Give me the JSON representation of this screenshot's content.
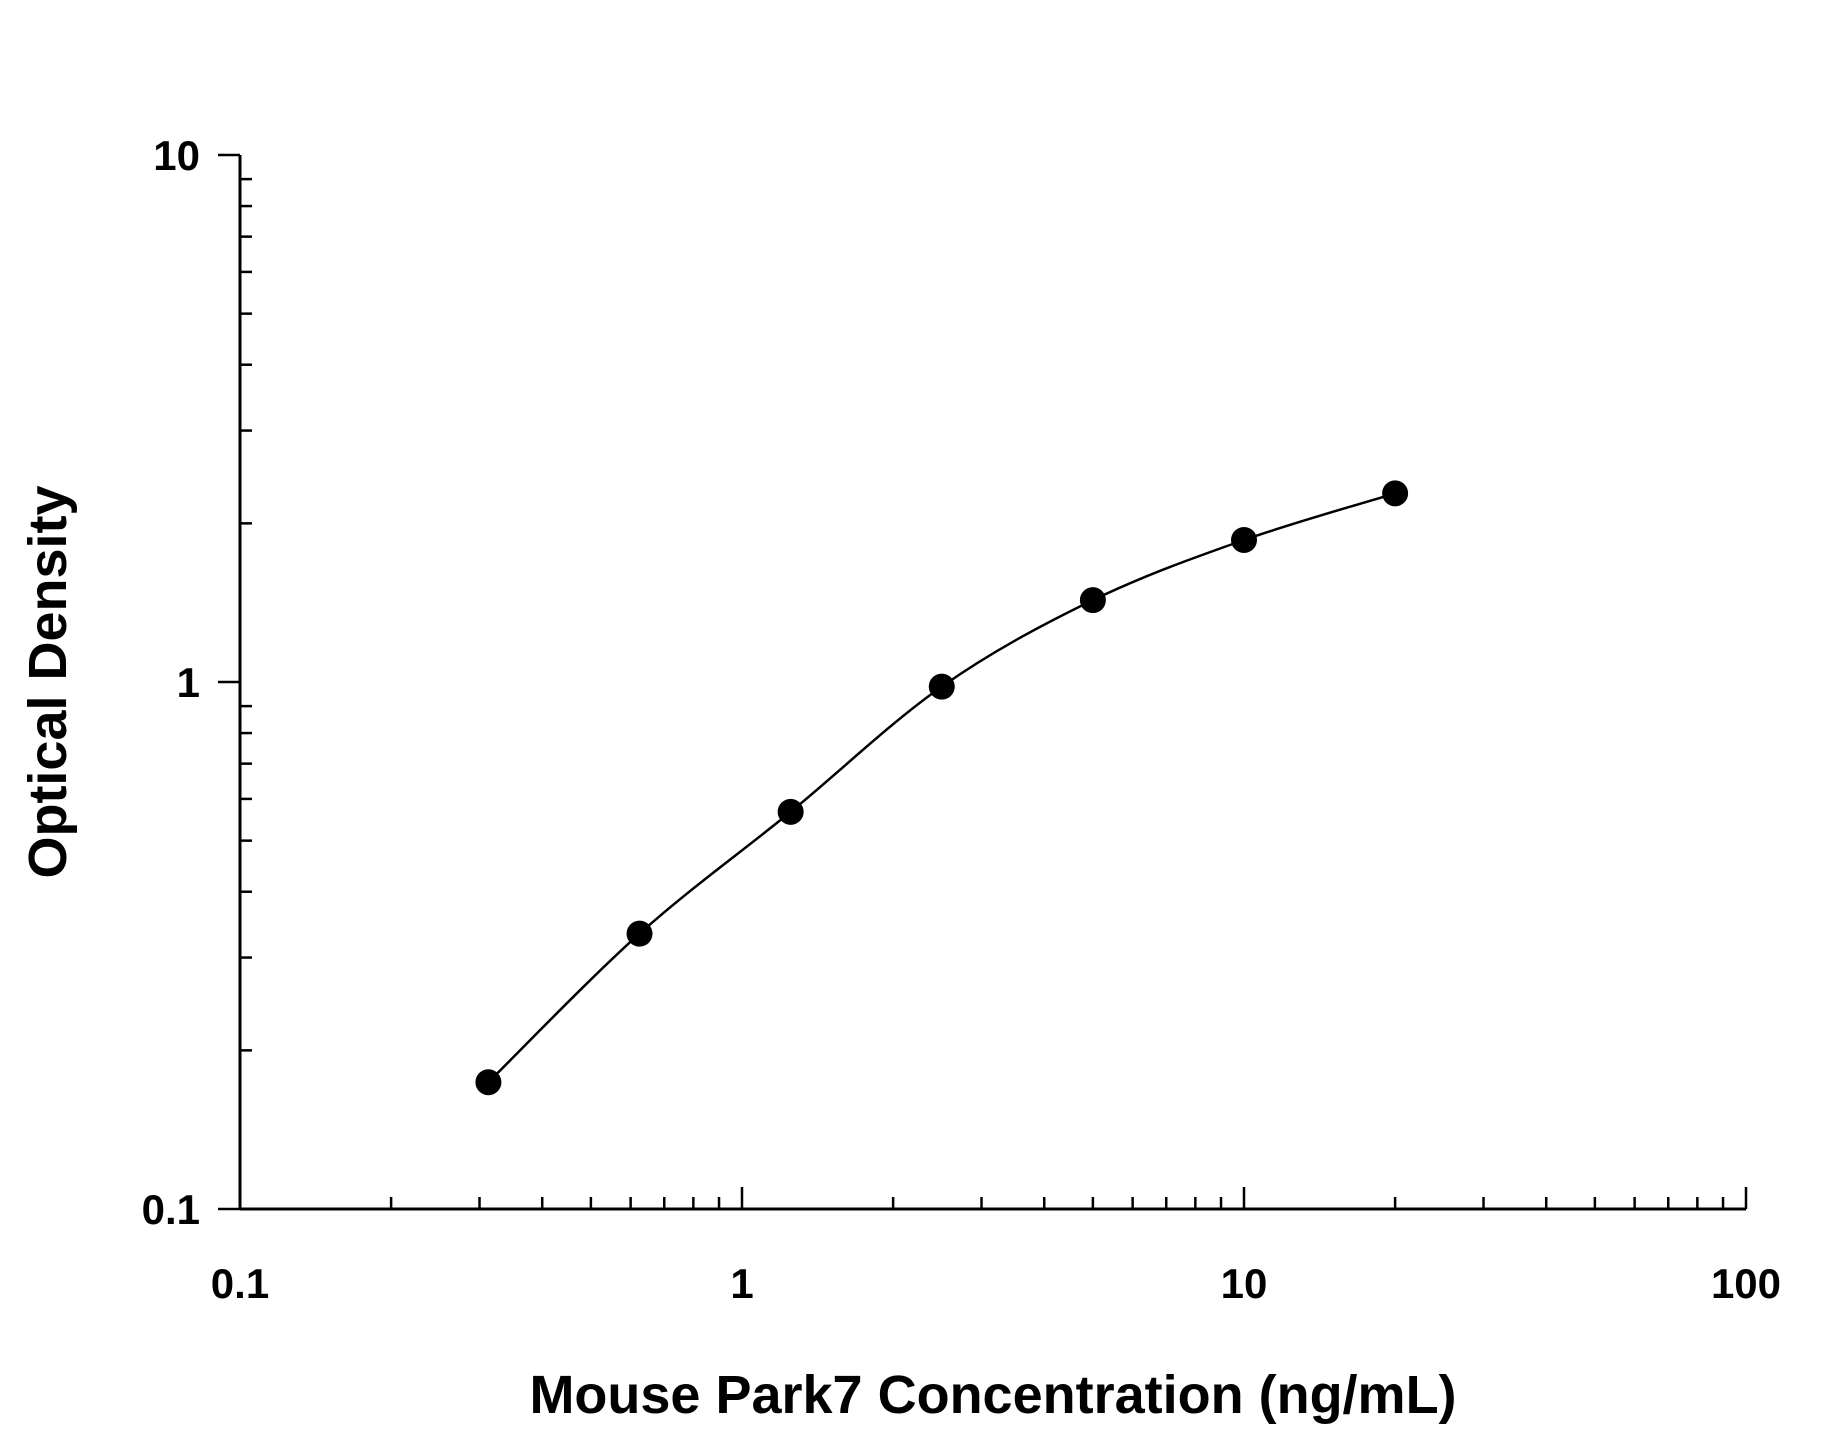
{
  "chart_data": {
    "type": "scatter",
    "title": "",
    "xlabel": "Mouse Park7 Concentration (ng/mL)",
    "ylabel": "Optical Density",
    "x_scale": "log",
    "y_scale": "log",
    "xlim": [
      0.1,
      100
    ],
    "ylim": [
      0.1,
      10
    ],
    "x_ticks": [
      "0.1",
      "1",
      "10",
      "100"
    ],
    "y_ticks": [
      "0.1",
      "1",
      "10"
    ],
    "grid": false,
    "legend": "none",
    "colors": {
      "marker": "#000000",
      "line": "#000000"
    },
    "series": [
      {
        "marker": "circle",
        "fit_curve": true,
        "x": [
          0.3125,
          0.625,
          1.25,
          2.5,
          5,
          10,
          20
        ],
        "y": [
          0.174,
          0.333,
          0.567,
          0.98,
          1.43,
          1.86,
          2.28
        ]
      }
    ]
  }
}
